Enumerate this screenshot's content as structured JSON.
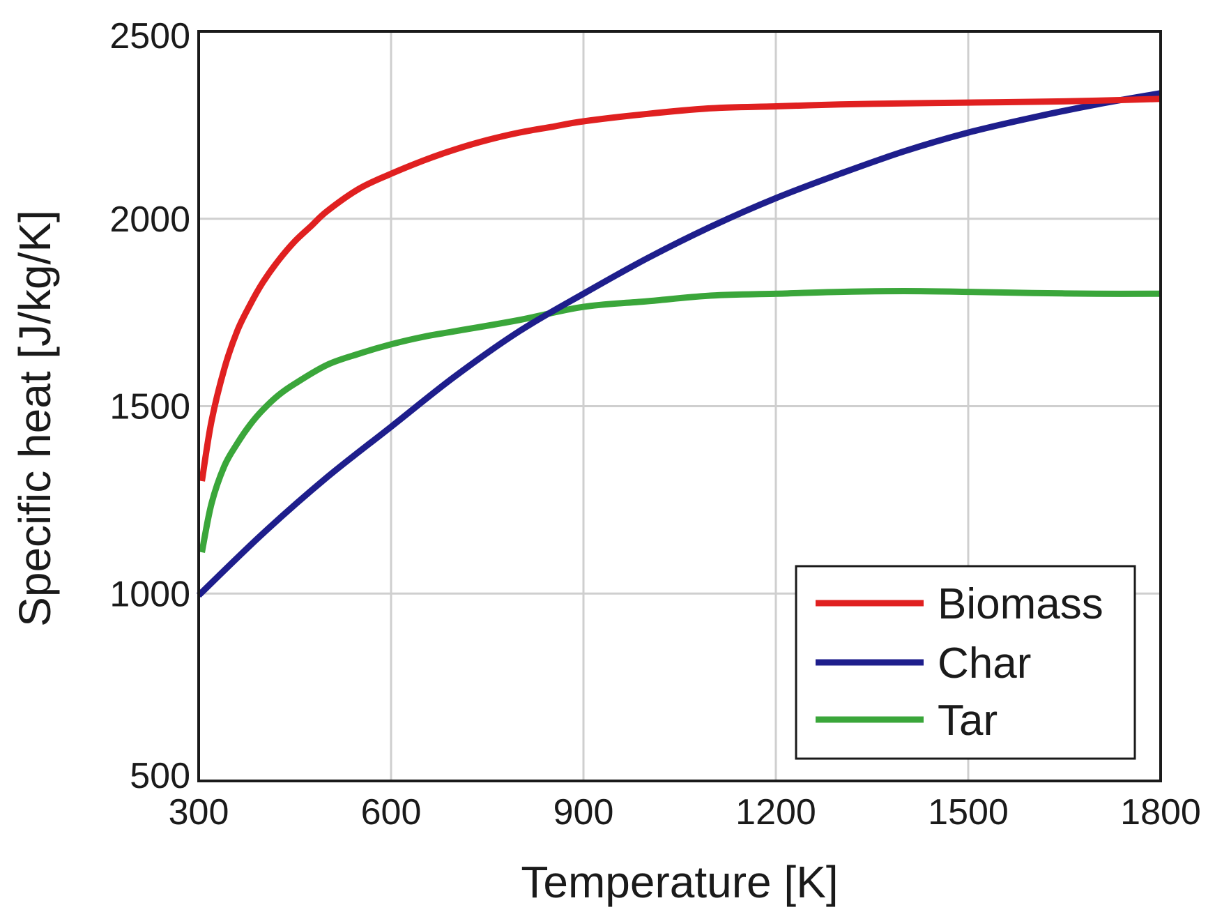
{
  "chart_data": {
    "type": "line",
    "title": "",
    "xlabel": "Temperature [K]",
    "ylabel": "Specific heat [J/kg/K]",
    "xlim": [
      300,
      1800
    ],
    "ylim": [
      500,
      2500
    ],
    "xticks": [
      300,
      600,
      900,
      1200,
      1500,
      1800
    ],
    "yticks": [
      500,
      1000,
      1500,
      2000,
      2500
    ],
    "grid": true,
    "legend_position": "bottom-right",
    "series": [
      {
        "name": "Biomass",
        "color": "#e02020",
        "x": [
          305,
          320,
          340,
          360,
          380,
          400,
          425,
          450,
          475,
          500,
          550,
          600,
          650,
          700,
          750,
          800,
          850,
          900,
          1000,
          1100,
          1200,
          1300,
          1400,
          1500,
          1600,
          1700,
          1800
        ],
        "y": [
          1300,
          1460,
          1600,
          1700,
          1770,
          1830,
          1890,
          1940,
          1980,
          2020,
          2080,
          2120,
          2155,
          2185,
          2210,
          2230,
          2245,
          2260,
          2280,
          2295,
          2300,
          2305,
          2308,
          2310,
          2312,
          2315,
          2320
        ]
      },
      {
        "name": "Char",
        "color": "#1e1e8c",
        "x": [
          300,
          400,
          500,
          600,
          700,
          800,
          900,
          1000,
          1100,
          1200,
          1300,
          1400,
          1500,
          1600,
          1700,
          1800
        ],
        "y": [
          995,
          1160,
          1310,
          1445,
          1580,
          1700,
          1800,
          1895,
          1980,
          2055,
          2120,
          2180,
          2230,
          2270,
          2305,
          2335
        ]
      },
      {
        "name": "Tar",
        "color": "#3aa63a",
        "x": [
          305,
          320,
          340,
          360,
          380,
          400,
          425,
          450,
          500,
          550,
          600,
          650,
          700,
          800,
          900,
          1000,
          1100,
          1200,
          1300,
          1400,
          1500,
          1600,
          1700,
          1800
        ],
        "y": [
          1110,
          1240,
          1340,
          1400,
          1450,
          1490,
          1530,
          1560,
          1610,
          1640,
          1665,
          1685,
          1700,
          1730,
          1765,
          1780,
          1795,
          1800,
          1805,
          1807,
          1805,
          1802,
          1800,
          1800
        ]
      }
    ]
  }
}
